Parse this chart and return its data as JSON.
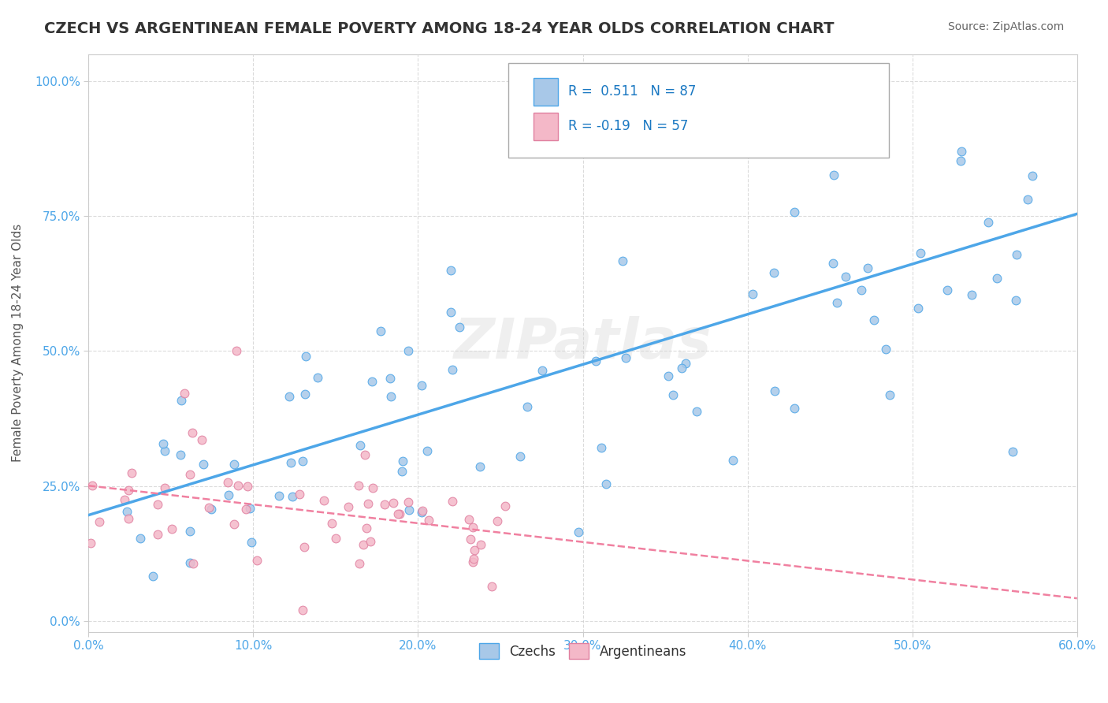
{
  "title": "CZECH VS ARGENTINEAN FEMALE POVERTY AMONG 18-24 YEAR OLDS CORRELATION CHART",
  "source": "Source: ZipAtlas.com",
  "ylabel": "Female Poverty Among 18-24 Year Olds",
  "xlim": [
    0.0,
    0.6
  ],
  "ylim": [
    -0.02,
    1.05
  ],
  "xticks": [
    0.0,
    0.1,
    0.2,
    0.3,
    0.4,
    0.5,
    0.6
  ],
  "xticklabels": [
    "0.0%",
    "10.0%",
    "20.0%",
    "30.0%",
    "40.0%",
    "50.0%",
    "60.0%"
  ],
  "yticks": [
    0.0,
    0.25,
    0.5,
    0.75,
    1.0
  ],
  "yticklabels": [
    "0.0%",
    "25.0%",
    "50.0%",
    "75.0%",
    "100.0%"
  ],
  "czech_R": 0.511,
  "czech_N": 87,
  "arg_R": -0.19,
  "arg_N": 57,
  "czech_color": "#a8c8e8",
  "arg_color": "#f4b8c8",
  "czech_line_color": "#4da6e8",
  "arg_line_color": "#f080a0",
  "watermark": "ZIPatlas",
  "legend_labels": [
    "Czechs",
    "Argentineans"
  ]
}
